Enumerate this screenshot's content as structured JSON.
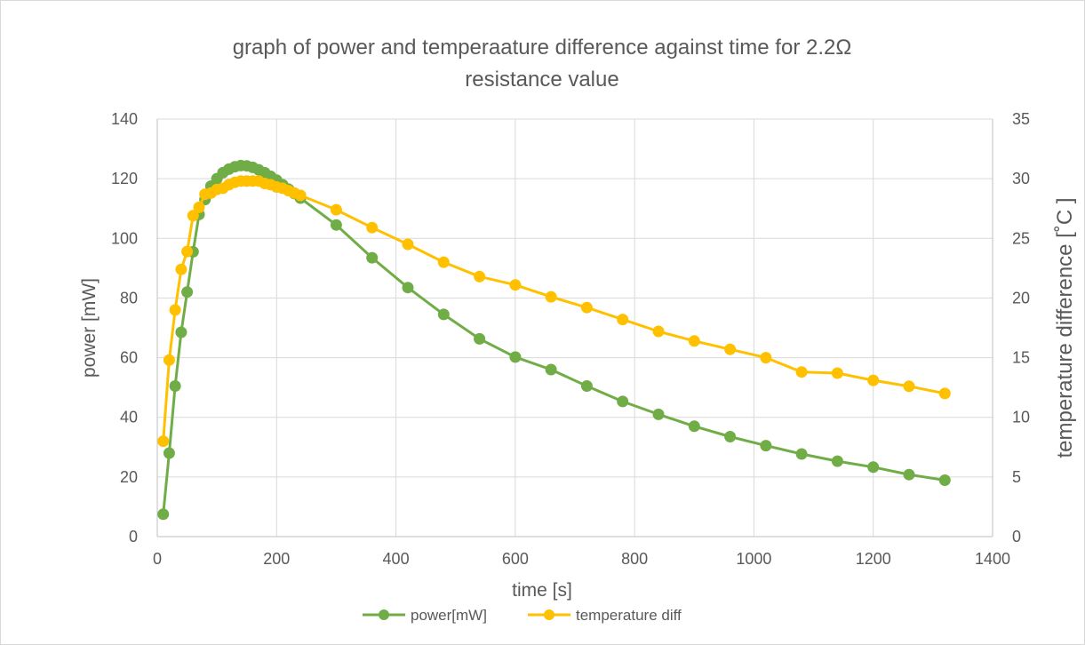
{
  "chart_data": {
    "type": "line",
    "title": "graph of power and temperaature difference against time for 2.2Ω resistance value",
    "title_lines": [
      "graph of power and temperaature difference against time for 2.2Ω",
      "resistance value"
    ],
    "xlabel": "time [s]",
    "ylabel": "power [mW]",
    "y2label": "temperature difference  [˚C ]",
    "xlim": [
      0,
      1400
    ],
    "ylim": [
      0,
      140
    ],
    "y2lim": [
      0,
      35
    ],
    "x_ticks": [
      0,
      200,
      400,
      600,
      800,
      1000,
      1200,
      1400
    ],
    "y_ticks": [
      0,
      20,
      40,
      60,
      80,
      100,
      120,
      140
    ],
    "y2_ticks": [
      0,
      5,
      10,
      15,
      20,
      25,
      30,
      35
    ],
    "grid": true,
    "legend_position": "bottom",
    "series": [
      {
        "name": "power[mW]",
        "axis": "left",
        "color": "#70ad47",
        "points": [
          [
            10,
            7.5
          ],
          [
            20,
            28
          ],
          [
            30,
            50.5
          ],
          [
            40,
            68.5
          ],
          [
            50,
            82
          ],
          [
            60,
            95.5
          ],
          [
            70,
            108
          ],
          [
            80,
            113
          ],
          [
            90,
            117.5
          ],
          [
            100,
            120
          ],
          [
            110,
            122
          ],
          [
            120,
            123.2
          ],
          [
            130,
            124
          ],
          [
            140,
            124.4
          ],
          [
            150,
            124.3
          ],
          [
            160,
            123.8
          ],
          [
            170,
            123
          ],
          [
            180,
            122
          ],
          [
            190,
            120.8
          ],
          [
            200,
            119.5
          ],
          [
            210,
            118
          ],
          [
            220,
            116.5
          ],
          [
            230,
            115
          ],
          [
            240,
            113.5
          ],
          [
            300,
            104.5
          ],
          [
            360,
            93.5
          ],
          [
            420,
            83.5
          ],
          [
            480,
            74.5
          ],
          [
            540,
            66.3
          ],
          [
            600,
            60.2
          ],
          [
            660,
            56
          ],
          [
            720,
            50.5
          ],
          [
            780,
            45.3
          ],
          [
            840,
            41
          ],
          [
            900,
            37
          ],
          [
            960,
            33.5
          ],
          [
            1020,
            30.5
          ],
          [
            1080,
            27.7
          ],
          [
            1140,
            25.3
          ],
          [
            1200,
            23.3
          ],
          [
            1260,
            20.8
          ],
          [
            1320,
            18.9
          ]
        ]
      },
      {
        "name": "temperature diff",
        "axis": "right",
        "color": "#ffc000",
        "points": [
          [
            10,
            8
          ],
          [
            20,
            14.8
          ],
          [
            30,
            19
          ],
          [
            40,
            22.4
          ],
          [
            50,
            23.9
          ],
          [
            60,
            26.9
          ],
          [
            70,
            27.6
          ],
          [
            80,
            28.7
          ],
          [
            90,
            28.8
          ],
          [
            100,
            29.1
          ],
          [
            110,
            29.2
          ],
          [
            120,
            29.5
          ],
          [
            130,
            29.7
          ],
          [
            140,
            29.8
          ],
          [
            150,
            29.8
          ],
          [
            160,
            29.8
          ],
          [
            170,
            29.8
          ],
          [
            180,
            29.6
          ],
          [
            190,
            29.5
          ],
          [
            200,
            29.3
          ],
          [
            210,
            29.2
          ],
          [
            220,
            29
          ],
          [
            230,
            28.8
          ],
          [
            240,
            28.6
          ],
          [
            300,
            27.4
          ],
          [
            360,
            25.9
          ],
          [
            420,
            24.5
          ],
          [
            480,
            23
          ],
          [
            540,
            21.8
          ],
          [
            600,
            21.1
          ],
          [
            660,
            20.1
          ],
          [
            720,
            19.2
          ],
          [
            780,
            18.2
          ],
          [
            840,
            17.2
          ],
          [
            900,
            16.4
          ],
          [
            960,
            15.7
          ],
          [
            1020,
            15
          ],
          [
            1080,
            13.8
          ],
          [
            1140,
            13.7
          ],
          [
            1200,
            13.1
          ],
          [
            1260,
            12.6
          ],
          [
            1320,
            12
          ]
        ]
      }
    ]
  }
}
